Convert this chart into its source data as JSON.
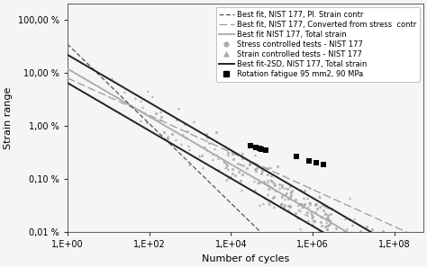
{
  "xlabel": "Number of cycles",
  "ylabel": "Strain range",
  "y_ticks_labels": [
    "0,01 %",
    "0,10 %",
    "1,00 %",
    "10,00 %",
    "100,00 %"
  ],
  "y_ticks_vals": [
    0.0001,
    0.001,
    0.01,
    0.1,
    1.0
  ],
  "x_ticks_labels": [
    "1,E+00",
    "1,E+02",
    "1,E+04",
    "1,E+06",
    "1,E+08"
  ],
  "x_ticks_vals": [
    1,
    100,
    10000,
    1000000,
    100000000
  ],
  "background_color": "#f5f5f5",
  "pl_strain_color": "#555555",
  "converted_color": "#999999",
  "total_strain_color": "#aaaaaa",
  "best_2sd_color": "#222222",
  "scatter_color": "#aaaaaa",
  "rotation_color": "#000000",
  "legend_fontsize": 6.0,
  "axis_fontsize": 8,
  "tick_fontsize": 7,
  "pl_A": 0.35,
  "pl_b": -0.75,
  "conv_A": 0.08,
  "conv_b": -0.35,
  "total_A": 0.12,
  "total_b": -0.45,
  "upper_A": 0.22,
  "upper_b": -0.45,
  "lower_A": 0.065,
  "lower_b": -0.45,
  "rotation_N": [
    30000,
    40000,
    50000,
    55000,
    70000,
    400000,
    800000,
    1200000,
    1800000
  ],
  "rotation_strain": [
    0.0042,
    0.004,
    0.0038,
    0.0037,
    0.0035,
    0.0027,
    0.0022,
    0.002,
    0.0019
  ]
}
